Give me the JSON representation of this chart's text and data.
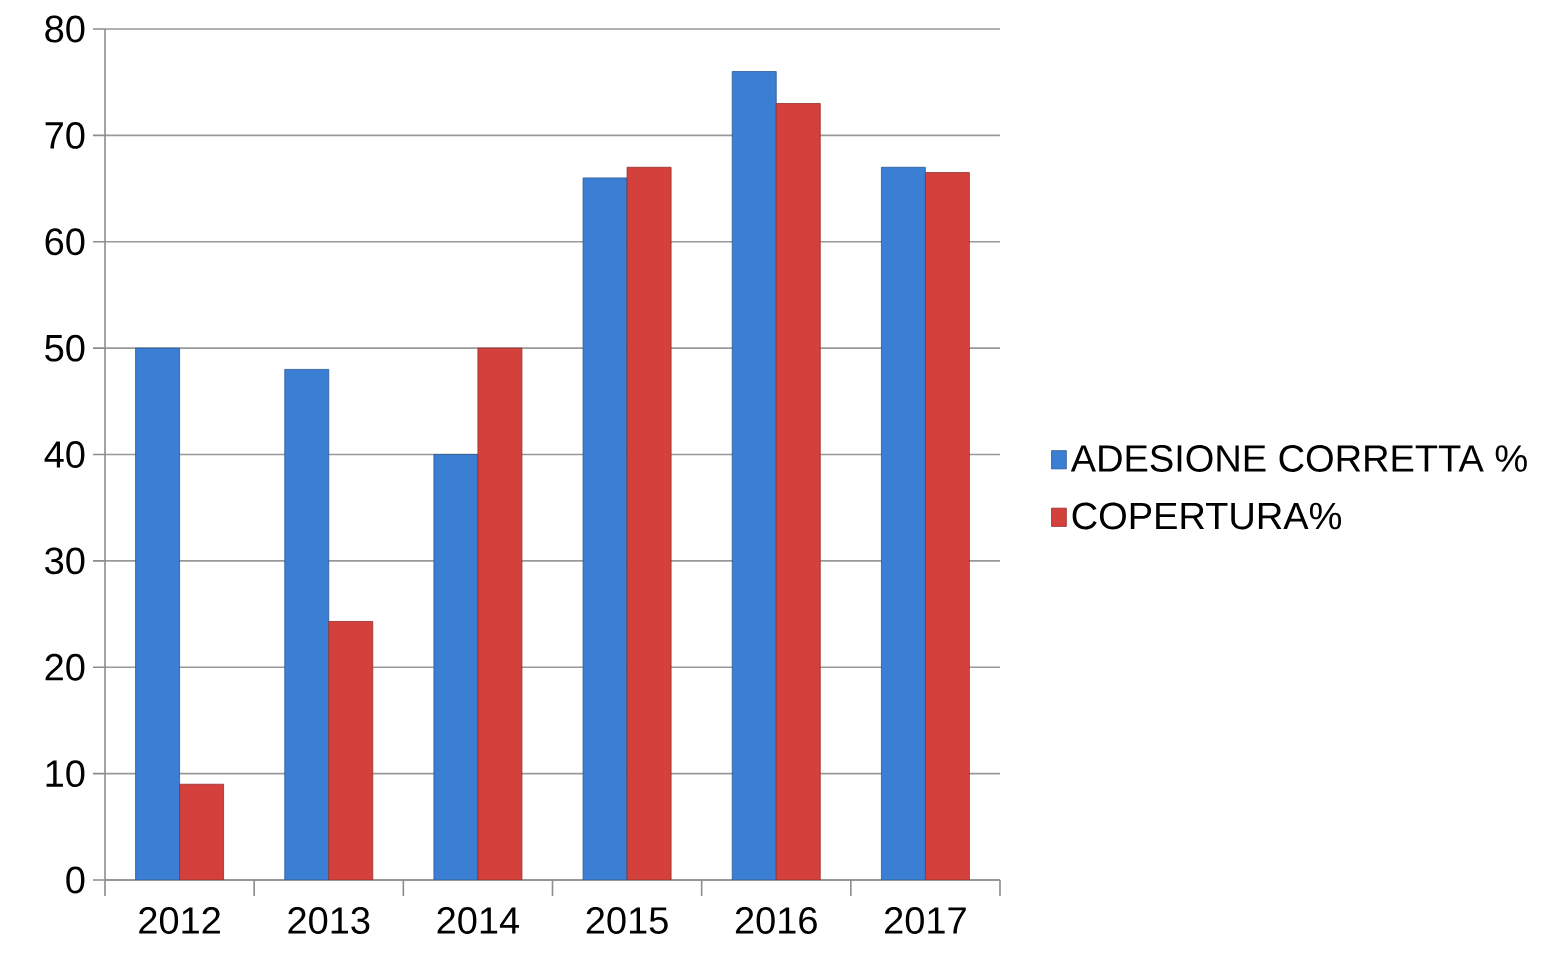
{
  "chart_data": {
    "type": "bar",
    "categories": [
      "2012",
      "2013",
      "2014",
      "2015",
      "2016",
      "2017"
    ],
    "series": [
      {
        "name": "ADESIONE CORRETTA %",
        "color": "#3b7fd4",
        "values": [
          50,
          48,
          40,
          66,
          76,
          67
        ]
      },
      {
        "name": "COPERTURA%",
        "color": "#d4403c",
        "values": [
          9,
          24.3,
          50,
          67,
          73,
          66.5
        ]
      }
    ],
    "ylim": [
      0,
      80
    ],
    "yticks": [
      0,
      10,
      20,
      30,
      40,
      50,
      60,
      70,
      80
    ],
    "grid": "y",
    "legend": "right"
  }
}
